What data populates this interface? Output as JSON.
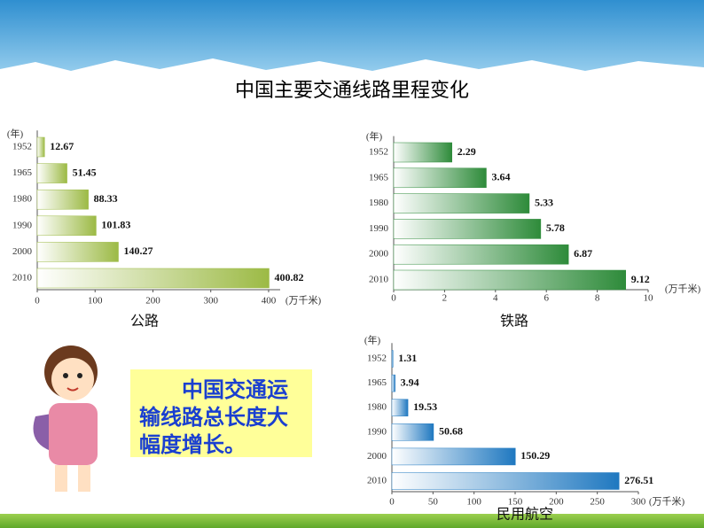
{
  "title": "中国主要交通线路里程变化",
  "callout": "中国交通运输线路总长度大幅度增长。",
  "chart_data": [
    {
      "type": "bar",
      "orientation": "horizontal",
      "title": "公路",
      "y_label": "(年)",
      "x_label": "(万千米)",
      "categories": [
        "1952",
        "1965",
        "1980",
        "1990",
        "2000",
        "2010"
      ],
      "values": [
        12.67,
        51.45,
        88.33,
        101.83,
        140.27,
        400.82
      ],
      "color": "#9cba45",
      "xlim": [
        0,
        420
      ],
      "xticks": [
        0,
        100,
        200,
        300,
        400
      ]
    },
    {
      "type": "bar",
      "orientation": "horizontal",
      "title": "铁路",
      "y_label": "(年)",
      "x_label": "(万千米)",
      "categories": [
        "1952",
        "1965",
        "1980",
        "1990",
        "2000",
        "2010"
      ],
      "values": [
        2.29,
        3.64,
        5.33,
        5.78,
        6.87,
        9.12
      ],
      "color": "#2e8b3a",
      "xlim": [
        0,
        10
      ],
      "xticks": [
        0,
        2,
        4,
        6,
        8,
        10
      ]
    },
    {
      "type": "bar",
      "orientation": "horizontal",
      "title": "民用航空",
      "y_label": "(年)",
      "x_label": "(万千米)",
      "categories": [
        "1952",
        "1965",
        "1980",
        "1990",
        "2000",
        "2010"
      ],
      "values": [
        1.31,
        3.94,
        19.53,
        50.68,
        150.29,
        276.51
      ],
      "color": "#1f78c0",
      "xlim": [
        0,
        300
      ],
      "xticks": [
        0,
        50,
        100,
        150,
        200,
        250,
        300
      ]
    }
  ]
}
